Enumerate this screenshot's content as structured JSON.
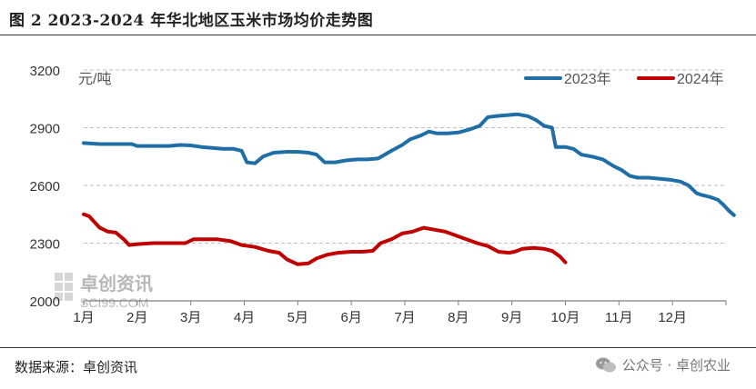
{
  "header": {
    "title": "图 2 2023-2024 年华北地区玉米市场均价走势图"
  },
  "footer": {
    "source": "数据来源：卓创资讯",
    "social_mark": "公众号 · 卓创农业"
  },
  "watermark": {
    "name": "卓创资讯",
    "site": "SCI99.COM"
  },
  "colors": {
    "series2023": "#1f6fa6",
    "series2024": "#c00000",
    "grid": "#bfbfbf",
    "axis": "#7f7f7f"
  },
  "chart_data": {
    "type": "line",
    "title": "2023-2024 年华北地区玉米市场均价走势图",
    "unit_label": "元/吨",
    "xlabel": "",
    "ylabel": "元/吨",
    "ylim": [
      2000,
      3200
    ],
    "yticks": [
      2000,
      2300,
      2600,
      2900,
      3200
    ],
    "xlim": [
      1,
      13
    ],
    "xticks": [
      {
        "label": "1月",
        "value": 1
      },
      {
        "label": "2月",
        "value": 2
      },
      {
        "label": "3月",
        "value": 3
      },
      {
        "label": "4月",
        "value": 4
      },
      {
        "label": "5月",
        "value": 5
      },
      {
        "label": "6月",
        "value": 6
      },
      {
        "label": "7月",
        "value": 7
      },
      {
        "label": "8月",
        "value": 8
      },
      {
        "label": "9月",
        "value": 9
      },
      {
        "label": "10月",
        "value": 10
      },
      {
        "label": "11月",
        "value": 11
      },
      {
        "label": "12月",
        "value": 12
      }
    ],
    "grid": true,
    "legend_position": "top-right",
    "series": [
      {
        "name": "2023年",
        "color": "#1f6fa6",
        "points": [
          [
            1.0,
            2820
          ],
          [
            1.3,
            2815
          ],
          [
            1.6,
            2815
          ],
          [
            1.9,
            2815
          ],
          [
            2.0,
            2805
          ],
          [
            2.3,
            2805
          ],
          [
            2.6,
            2805
          ],
          [
            2.8,
            2810
          ],
          [
            3.0,
            2808
          ],
          [
            3.2,
            2800
          ],
          [
            3.4,
            2795
          ],
          [
            3.6,
            2790
          ],
          [
            3.8,
            2790
          ],
          [
            3.95,
            2780
          ],
          [
            4.05,
            2720
          ],
          [
            4.2,
            2715
          ],
          [
            4.35,
            2750
          ],
          [
            4.55,
            2770
          ],
          [
            4.8,
            2775
          ],
          [
            5.0,
            2775
          ],
          [
            5.2,
            2770
          ],
          [
            5.35,
            2760
          ],
          [
            5.5,
            2720
          ],
          [
            5.7,
            2720
          ],
          [
            5.9,
            2730
          ],
          [
            6.1,
            2735
          ],
          [
            6.3,
            2735
          ],
          [
            6.5,
            2740
          ],
          [
            6.75,
            2780
          ],
          [
            6.95,
            2810
          ],
          [
            7.1,
            2840
          ],
          [
            7.3,
            2860
          ],
          [
            7.45,
            2880
          ],
          [
            7.6,
            2870
          ],
          [
            7.8,
            2870
          ],
          [
            8.0,
            2875
          ],
          [
            8.2,
            2890
          ],
          [
            8.4,
            2910
          ],
          [
            8.55,
            2955
          ],
          [
            8.7,
            2960
          ],
          [
            8.9,
            2965
          ],
          [
            9.1,
            2970
          ],
          [
            9.3,
            2960
          ],
          [
            9.45,
            2940
          ],
          [
            9.6,
            2910
          ],
          [
            9.75,
            2900
          ],
          [
            9.82,
            2800
          ],
          [
            10.0,
            2800
          ],
          [
            10.15,
            2790
          ],
          [
            10.3,
            2760
          ],
          [
            10.5,
            2750
          ],
          [
            10.7,
            2735
          ],
          [
            10.9,
            2700
          ],
          [
            11.05,
            2680
          ],
          [
            11.2,
            2650
          ],
          [
            11.35,
            2640
          ],
          [
            11.55,
            2640
          ],
          [
            11.75,
            2635
          ],
          [
            11.95,
            2630
          ],
          [
            12.15,
            2620
          ],
          [
            12.3,
            2600
          ],
          [
            12.45,
            2560
          ],
          [
            12.55,
            2550
          ],
          [
            12.7,
            2540
          ],
          [
            12.85,
            2525
          ],
          [
            12.95,
            2500
          ],
          [
            13.05,
            2470
          ],
          [
            13.15,
            2445
          ]
        ]
      },
      {
        "name": "2024年",
        "color": "#c00000",
        "points": [
          [
            1.0,
            2450
          ],
          [
            1.1,
            2440
          ],
          [
            1.2,
            2410
          ],
          [
            1.3,
            2380
          ],
          [
            1.45,
            2360
          ],
          [
            1.6,
            2355
          ],
          [
            1.75,
            2320
          ],
          [
            1.85,
            2290
          ],
          [
            2.0,
            2295
          ],
          [
            2.3,
            2300
          ],
          [
            2.6,
            2300
          ],
          [
            2.9,
            2300
          ],
          [
            3.05,
            2320
          ],
          [
            3.25,
            2320
          ],
          [
            3.5,
            2320
          ],
          [
            3.75,
            2310
          ],
          [
            3.95,
            2290
          ],
          [
            4.2,
            2280
          ],
          [
            4.45,
            2260
          ],
          [
            4.65,
            2250
          ],
          [
            4.8,
            2215
          ],
          [
            5.0,
            2190
          ],
          [
            5.2,
            2195
          ],
          [
            5.35,
            2220
          ],
          [
            5.55,
            2240
          ],
          [
            5.75,
            2250
          ],
          [
            6.0,
            2255
          ],
          [
            6.2,
            2255
          ],
          [
            6.4,
            2260
          ],
          [
            6.55,
            2300
          ],
          [
            6.75,
            2320
          ],
          [
            6.95,
            2350
          ],
          [
            7.15,
            2360
          ],
          [
            7.35,
            2380
          ],
          [
            7.55,
            2370
          ],
          [
            7.75,
            2360
          ],
          [
            7.95,
            2340
          ],
          [
            8.15,
            2320
          ],
          [
            8.35,
            2300
          ],
          [
            8.55,
            2285
          ],
          [
            8.75,
            2255
          ],
          [
            8.95,
            2250
          ],
          [
            9.05,
            2255
          ],
          [
            9.2,
            2270
          ],
          [
            9.4,
            2275
          ],
          [
            9.6,
            2270
          ],
          [
            9.75,
            2260
          ],
          [
            9.9,
            2230
          ],
          [
            10.0,
            2200
          ]
        ]
      }
    ]
  }
}
